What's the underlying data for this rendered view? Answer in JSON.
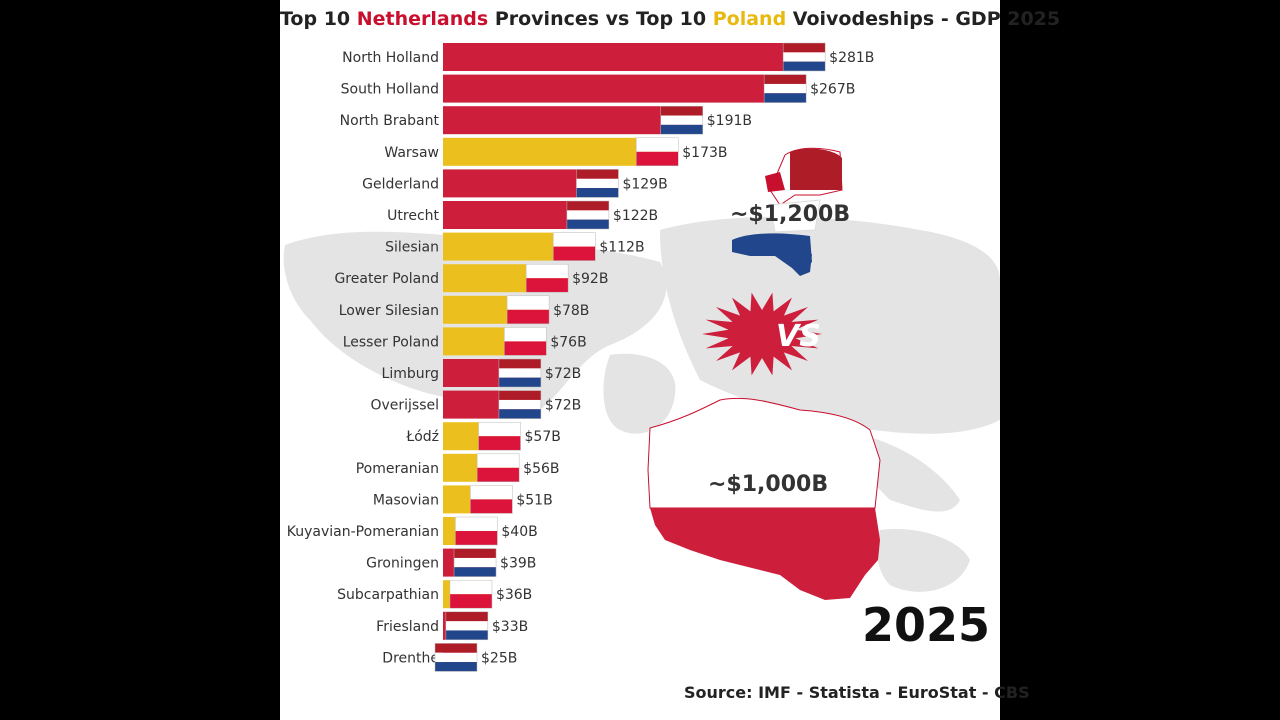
{
  "title": {
    "prefix": "Top 10 ",
    "nl": "Netherlands",
    "mid": " Provinces vs Top 10 ",
    "pl": "Poland",
    "suffix": " Voivodeships - GDP 2025"
  },
  "nl_total": "~$1,200B",
  "pl_total": "~$1,000B",
  "vs_text": "VS",
  "year": "2025",
  "source": "Source: IMF - Statista - EuroStat - CBS",
  "colors": {
    "netherlands": "#cd1e3c",
    "poland": "#ebc01e",
    "flag_blue": "#21468b",
    "flag_white": "#ffffff"
  },
  "chart_data": {
    "type": "bar",
    "orientation": "horizontal",
    "unit": "$B",
    "categories": [
      "North Holland",
      "South Holland",
      "North Brabant",
      "Warsaw",
      "Gelderland",
      "Utrecht",
      "Silesian",
      "Greater Poland",
      "Lower Silesian",
      "Lesser Poland",
      "Limburg",
      "Overijssel",
      "Łódź",
      "Pomeranian",
      "Masovian",
      "Kuyavian-Pomeranian",
      "Groningen",
      "Subcarpathian",
      "Friesland",
      "Drenthe"
    ],
    "values": [
      281,
      267,
      191,
      173,
      129,
      122,
      112,
      92,
      78,
      76,
      72,
      72,
      57,
      56,
      51,
      40,
      39,
      36,
      33,
      25
    ],
    "value_labels": [
      "$281B",
      "$267B",
      "$191B",
      "$173B",
      "$129B",
      "$122B",
      "$112B",
      "$92B",
      "$78B",
      "$76B",
      "$72B",
      "$72B",
      "$57B",
      "$56B",
      "$51B",
      "$40B",
      "$39B",
      "$36B",
      "$33B",
      "$25B"
    ],
    "country": [
      "NL",
      "NL",
      "NL",
      "PL",
      "NL",
      "NL",
      "PL",
      "PL",
      "PL",
      "PL",
      "NL",
      "NL",
      "PL",
      "PL",
      "PL",
      "PL",
      "NL",
      "PL",
      "NL",
      "NL"
    ]
  }
}
